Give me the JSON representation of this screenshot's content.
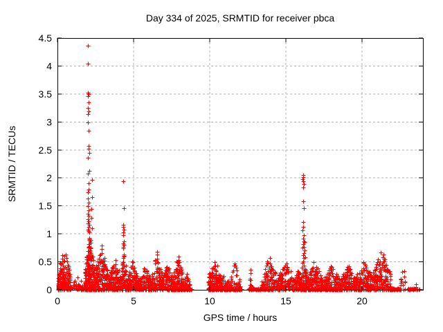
{
  "window": {
    "title": "Day 334 of 2025, SRMTID for receiver pbca"
  },
  "chart_data": {
    "type": "scatter",
    "title": "Day 334 of 2025, SRMTID for receiver pbca",
    "xlabel": "GPS time / hours",
    "ylabel": "SRMTID / TECUs",
    "series_name": "SRMTID",
    "xlim": [
      0,
      24
    ],
    "ylim": [
      0,
      4.5
    ],
    "xticks": [
      0,
      5,
      10,
      15,
      20
    ],
    "yticks": [
      0,
      0.5,
      1,
      1.5,
      2,
      2.5,
      3,
      3.5,
      4,
      4.5
    ],
    "x_tick_labels": [
      "0",
      "5",
      "10",
      "15",
      "20"
    ],
    "y_tick_labels": [
      "0",
      "0.5",
      "1",
      "1.5",
      "2",
      "2.5",
      "3",
      "3.5",
      "4",
      "4.5"
    ],
    "grid": {
      "visible": true,
      "style": "dashed",
      "color": "#b0b0b0"
    },
    "border_color": "#000000",
    "legend": "none",
    "marker": {
      "symbol": "plus",
      "color": "#ff0000",
      "size": 7
    },
    "spike_points": [
      [
        1.98,
        4.37
      ],
      [
        2.0,
        4.04
      ],
      [
        1.99,
        3.52
      ],
      [
        2.03,
        3.5
      ],
      [
        1.98,
        3.46
      ],
      [
        2.06,
        3.35
      ],
      [
        1.99,
        3.25
      ],
      [
        2.04,
        3.19
      ],
      [
        2.01,
        3.14
      ],
      [
        1.99,
        2.99
      ],
      [
        2.03,
        2.84
      ],
      [
        2.06,
        2.57
      ],
      [
        2.03,
        2.52
      ],
      [
        2.07,
        2.45
      ],
      [
        2.02,
        2.36
      ],
      [
        2.08,
        2.13
      ],
      [
        2.0,
        2.08
      ],
      [
        2.25,
        1.97
      ],
      [
        2.04,
        1.9
      ],
      [
        2.03,
        1.79
      ],
      [
        2.0,
        1.74
      ],
      [
        2.26,
        1.66
      ],
      [
        2.02,
        1.63
      ],
      [
        2.06,
        1.56
      ],
      [
        2.01,
        1.5
      ],
      [
        2.24,
        1.45
      ],
      [
        2.03,
        1.42
      ],
      [
        2.0,
        1.36
      ],
      [
        2.06,
        1.32
      ],
      [
        2.22,
        1.28
      ],
      [
        2.02,
        1.26
      ],
      [
        2.04,
        1.22
      ],
      [
        2.0,
        1.19
      ],
      [
        2.07,
        1.16
      ],
      [
        2.03,
        1.13
      ],
      [
        2.25,
        1.1
      ],
      [
        2.0,
        1.08
      ],
      [
        2.05,
        1.05
      ],
      [
        2.1,
        1.03
      ],
      [
        4.33,
        1.94
      ],
      [
        4.35,
        1.46
      ],
      [
        4.3,
        1.16
      ],
      [
        4.34,
        1.12
      ],
      [
        4.38,
        1.08
      ],
      [
        4.33,
        1.03
      ],
      [
        4.31,
        0.98
      ],
      [
        4.35,
        0.86
      ],
      [
        4.32,
        0.83
      ],
      [
        4.37,
        0.8
      ],
      [
        4.34,
        0.77
      ],
      [
        4.31,
        0.74
      ],
      [
        4.36,
        0.63
      ],
      [
        16.12,
        2.05
      ],
      [
        16.15,
        2.01
      ],
      [
        16.1,
        1.98
      ],
      [
        16.14,
        1.94
      ],
      [
        16.17,
        1.89
      ],
      [
        16.12,
        1.83
      ],
      [
        16.13,
        1.58
      ],
      [
        16.16,
        1.46
      ],
      [
        16.12,
        1.21
      ],
      [
        16.15,
        1.12
      ],
      [
        16.11,
        1.06
      ],
      [
        16.16,
        0.98
      ],
      [
        16.12,
        0.92
      ],
      [
        16.2,
        0.86
      ],
      [
        16.15,
        0.81
      ],
      [
        16.1,
        0.76
      ],
      [
        16.22,
        0.71
      ],
      [
        16.17,
        0.66
      ],
      [
        16.13,
        0.62
      ],
      [
        16.25,
        0.58
      ]
    ],
    "noise_clusters": [
      {
        "t0": 0.02,
        "t1": 0.85,
        "n": 170,
        "ymax": 0.76
      },
      {
        "t0": 0.9,
        "t1": 1.75,
        "n": 35,
        "ymax": 0.24
      },
      {
        "t0": 1.8,
        "t1": 2.45,
        "n": 240,
        "ymax": 1.02
      },
      {
        "t0": 2.45,
        "t1": 3.35,
        "n": 150,
        "ymax": 0.8
      },
      {
        "t0": 3.35,
        "t1": 4.2,
        "n": 130,
        "ymax": 0.55
      },
      {
        "t0": 4.2,
        "t1": 4.55,
        "n": 60,
        "ymax": 0.7
      },
      {
        "t0": 4.55,
        "t1": 5.3,
        "n": 120,
        "ymax": 0.52
      },
      {
        "t0": 5.3,
        "t1": 6.2,
        "n": 110,
        "ymax": 0.44
      },
      {
        "t0": 6.2,
        "t1": 6.9,
        "n": 100,
        "ymax": 0.7
      },
      {
        "t0": 6.9,
        "t1": 7.6,
        "n": 100,
        "ymax": 0.5
      },
      {
        "t0": 7.6,
        "t1": 8.25,
        "n": 110,
        "ymax": 0.62
      },
      {
        "t0": 8.25,
        "t1": 8.7,
        "n": 50,
        "ymax": 0.3
      },
      {
        "t0": 9.9,
        "t1": 10.7,
        "n": 140,
        "ymax": 0.62
      },
      {
        "t0": 10.7,
        "t1": 11.3,
        "n": 50,
        "ymax": 0.34
      },
      {
        "t0": 11.3,
        "t1": 12.0,
        "n": 45,
        "ymax": 0.5
      },
      {
        "t0": 12.6,
        "t1": 12.75,
        "n": 12,
        "ymax": 0.5
      },
      {
        "t0": 13.4,
        "t1": 14.4,
        "n": 100,
        "ymax": 0.62
      },
      {
        "t0": 14.4,
        "t1": 15.6,
        "n": 140,
        "ymax": 0.5
      },
      {
        "t0": 15.6,
        "t1": 16.05,
        "n": 70,
        "ymax": 0.44
      },
      {
        "t0": 16.05,
        "t1": 16.35,
        "n": 70,
        "ymax": 0.9
      },
      {
        "t0": 16.35,
        "t1": 17.4,
        "n": 140,
        "ymax": 0.54
      },
      {
        "t0": 17.4,
        "t1": 18.6,
        "n": 140,
        "ymax": 0.44
      },
      {
        "t0": 18.6,
        "t1": 19.6,
        "n": 130,
        "ymax": 0.46
      },
      {
        "t0": 19.6,
        "t1": 20.7,
        "n": 150,
        "ymax": 0.56
      },
      {
        "t0": 20.7,
        "t1": 21.9,
        "n": 160,
        "ymax": 0.72
      },
      {
        "t0": 22.55,
        "t1": 22.85,
        "n": 14,
        "ymax": 0.55
      },
      {
        "t0": 23.3,
        "t1": 23.8,
        "n": 10,
        "ymax": 0.12
      }
    ],
    "zero_bars": [
      [
        1.25,
        1.38
      ],
      [
        1.55,
        1.72
      ],
      [
        7.6,
        8.85
      ],
      [
        9.9,
        12.1
      ],
      [
        12.55,
        13.6
      ],
      [
        13.6,
        14.1
      ],
      [
        16.7,
        18.7
      ],
      [
        21.9,
        22.5
      ],
      [
        23.0,
        23.45
      ]
    ],
    "seed": 1334
  }
}
